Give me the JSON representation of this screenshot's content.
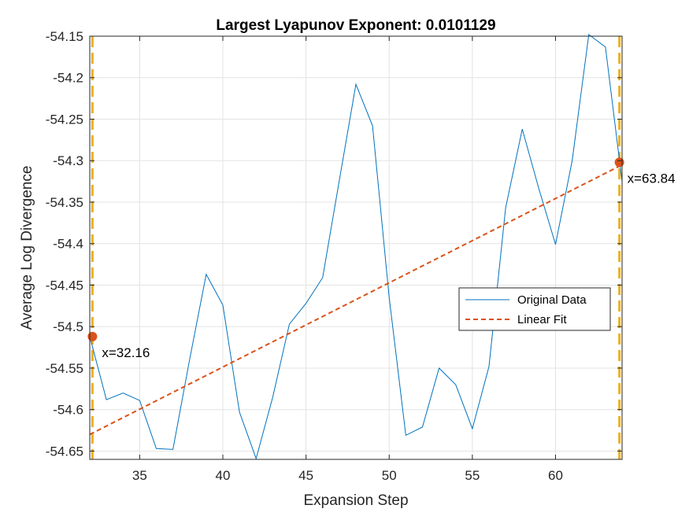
{
  "chart_data": {
    "type": "line",
    "title": "Largest Lyapunov Exponent: 0.0101129",
    "xlabel": "Expansion Step",
    "ylabel": "Average Log Divergence",
    "xlim": [
      32,
      64
    ],
    "ylim": [
      -54.66,
      -54.15
    ],
    "xticks": [
      35,
      40,
      45,
      50,
      55,
      60
    ],
    "yticks": [
      -54.65,
      -54.6,
      -54.55,
      -54.5,
      -54.45,
      -54.4,
      -54.35,
      -54.3,
      -54.25,
      -54.2,
      -54.15
    ],
    "xtick_labels": [
      "35",
      "40",
      "45",
      "50",
      "55",
      "60"
    ],
    "ytick_labels": [
      "-54.65",
      "-54.6",
      "-54.55",
      "-54.5",
      "-54.45",
      "-54.4",
      "-54.35",
      "-54.3",
      "-54.25",
      "-54.2",
      "-54.15"
    ],
    "grid": true,
    "legend_position": "center-right",
    "series": [
      {
        "name": "Original Data",
        "style": "solid",
        "color": "#0072BD",
        "x": [
          32,
          33,
          34,
          35,
          36,
          37,
          38,
          39,
          40,
          41,
          42,
          43,
          44,
          45,
          46,
          47,
          48,
          49,
          50,
          51,
          52,
          53,
          54,
          55,
          56,
          57,
          58,
          59,
          60,
          61,
          62,
          63,
          64
        ],
        "y": [
          -54.512,
          -54.588,
          -54.58,
          -54.589,
          -54.647,
          -54.648,
          -54.54,
          -54.437,
          -54.474,
          -54.603,
          -54.659,
          -54.585,
          -54.497,
          -54.472,
          -54.441,
          -54.324,
          -54.208,
          -54.258,
          -54.465,
          -54.631,
          -54.621,
          -54.55,
          -54.57,
          -54.623,
          -54.548,
          -54.357,
          -54.262,
          -54.334,
          -54.401,
          -54.3,
          -54.148,
          -54.163,
          -54.325
        ]
      },
      {
        "name": "Linear Fit",
        "style": "dashed",
        "color": "#D95319",
        "x": [
          32,
          64
        ],
        "y": [
          -54.63,
          -54.305
        ]
      }
    ],
    "vertical_lines": [
      {
        "x": 32.16,
        "color": "#EDB120",
        "style": "dashed"
      },
      {
        "x": 63.84,
        "color": "#EDB120",
        "style": "dashed"
      }
    ],
    "markers": [
      {
        "x": 32.16,
        "y": -54.512,
        "label": "x=32.16",
        "color": "#D95319"
      },
      {
        "x": 63.84,
        "y": -54.302,
        "label": "x=63.84",
        "color": "#D95319"
      }
    ]
  }
}
